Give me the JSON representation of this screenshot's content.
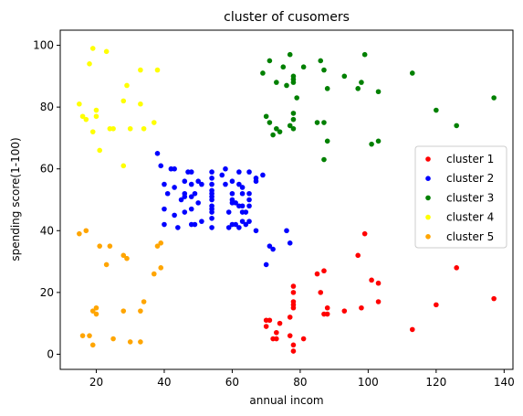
{
  "chart_data": {
    "type": "scatter",
    "title": "cluster of cusomers",
    "xlabel": "annual incom",
    "ylabel": "spending score(1-100)",
    "xlim": [
      9.4,
      142.6
    ],
    "ylim": [
      -4.9,
      104.9
    ],
    "xticks": [
      20,
      40,
      60,
      80,
      100,
      120,
      140
    ],
    "yticks": [
      0,
      20,
      40,
      60,
      80,
      100
    ],
    "grid": false,
    "legend_position": "center-right",
    "series": [
      {
        "name": "cluster 1",
        "color": "#ff0000",
        "points": [
          [
            70,
            9
          ],
          [
            70,
            11
          ],
          [
            71,
            11
          ],
          [
            72,
            5
          ],
          [
            73,
            7
          ],
          [
            73,
            5
          ],
          [
            74,
            10
          ],
          [
            77,
            12
          ],
          [
            77,
            6
          ],
          [
            78,
            15
          ],
          [
            78,
            1
          ],
          [
            78,
            3
          ],
          [
            78,
            16
          ],
          [
            78,
            17
          ],
          [
            78,
            20
          ],
          [
            78,
            22
          ],
          [
            81,
            5
          ],
          [
            85,
            26
          ],
          [
            86,
            20
          ],
          [
            87,
            27
          ],
          [
            87,
            13
          ],
          [
            88,
            13
          ],
          [
            88,
            15
          ],
          [
            93,
            14
          ],
          [
            97,
            32
          ],
          [
            98,
            15
          ],
          [
            99,
            39
          ],
          [
            101,
            24
          ],
          [
            103,
            17
          ],
          [
            103,
            23
          ],
          [
            113,
            8
          ],
          [
            120,
            16
          ],
          [
            126,
            28
          ],
          [
            137,
            18
          ]
        ]
      },
      {
        "name": "cluster 2",
        "color": "#0000ff",
        "points": [
          [
            38,
            65
          ],
          [
            39,
            61
          ],
          [
            40,
            42
          ],
          [
            40,
            47
          ],
          [
            40,
            55
          ],
          [
            41,
            52
          ],
          [
            42,
            60
          ],
          [
            43,
            60
          ],
          [
            43,
            54
          ],
          [
            43,
            45
          ],
          [
            44,
            41
          ],
          [
            45,
            50
          ],
          [
            46,
            46
          ],
          [
            46,
            51
          ],
          [
            46,
            56
          ],
          [
            46,
            52
          ],
          [
            47,
            59
          ],
          [
            48,
            59
          ],
          [
            48,
            47
          ],
          [
            48,
            55
          ],
          [
            48,
            51
          ],
          [
            48,
            42
          ],
          [
            49,
            52
          ],
          [
            49,
            42
          ],
          [
            50,
            49
          ],
          [
            50,
            56
          ],
          [
            51,
            43
          ],
          [
            51,
            55
          ],
          [
            54,
            41
          ],
          [
            54,
            44
          ],
          [
            54,
            46
          ],
          [
            54,
            47
          ],
          [
            54,
            48
          ],
          [
            54,
            50
          ],
          [
            54,
            51
          ],
          [
            54,
            52
          ],
          [
            54,
            53
          ],
          [
            54,
            55
          ],
          [
            54,
            57
          ],
          [
            54,
            59
          ],
          [
            57,
            58
          ],
          [
            58,
            55
          ],
          [
            58,
            60
          ],
          [
            59,
            41
          ],
          [
            59,
            46
          ],
          [
            60,
            42
          ],
          [
            60,
            49
          ],
          [
            60,
            50
          ],
          [
            60,
            52
          ],
          [
            60,
            56
          ],
          [
            61,
            42
          ],
          [
            61,
            49
          ],
          [
            62,
            41
          ],
          [
            62,
            48
          ],
          [
            62,
            59
          ],
          [
            62,
            55
          ],
          [
            63,
            54
          ],
          [
            63,
            46
          ],
          [
            63,
            43
          ],
          [
            63,
            52
          ],
          [
            63,
            48
          ],
          [
            64,
            42
          ],
          [
            64,
            46
          ],
          [
            65,
            48
          ],
          [
            65,
            50
          ],
          [
            65,
            52
          ],
          [
            65,
            43
          ],
          [
            65,
            59
          ],
          [
            67,
            40
          ],
          [
            67,
            56
          ],
          [
            67,
            57
          ],
          [
            69,
            58
          ],
          [
            70,
            29
          ],
          [
            71,
            35
          ],
          [
            72,
            34
          ],
          [
            76,
            40
          ],
          [
            77,
            36
          ]
        ]
      },
      {
        "name": "cluster 3",
        "color": "#008000",
        "points": [
          [
            69,
            91
          ],
          [
            70,
            77
          ],
          [
            71,
            95
          ],
          [
            71,
            75
          ],
          [
            72,
            71
          ],
          [
            73,
            88
          ],
          [
            73,
            73
          ],
          [
            74,
            72
          ],
          [
            75,
            93
          ],
          [
            76,
            87
          ],
          [
            77,
            97
          ],
          [
            77,
            74
          ],
          [
            78,
            90
          ],
          [
            78,
            88
          ],
          [
            78,
            76
          ],
          [
            78,
            89
          ],
          [
            78,
            78
          ],
          [
            78,
            73
          ],
          [
            79,
            83
          ],
          [
            81,
            93
          ],
          [
            85,
            75
          ],
          [
            86,
            95
          ],
          [
            87,
            75
          ],
          [
            87,
            92
          ],
          [
            87,
            63
          ],
          [
            88,
            86
          ],
          [
            88,
            69
          ],
          [
            93,
            90
          ],
          [
            97,
            86
          ],
          [
            98,
            88
          ],
          [
            99,
            97
          ],
          [
            101,
            68
          ],
          [
            103,
            85
          ],
          [
            103,
            69
          ],
          [
            113,
            91
          ],
          [
            120,
            79
          ],
          [
            126,
            74
          ],
          [
            137,
            83
          ]
        ]
      },
      {
        "name": "cluster 4",
        "color": "#ffff00",
        "points": [
          [
            15,
            81
          ],
          [
            16,
            77
          ],
          [
            17,
            76
          ],
          [
            18,
            94
          ],
          [
            19,
            72
          ],
          [
            19,
            99
          ],
          [
            20,
            77
          ],
          [
            20,
            79
          ],
          [
            21,
            66
          ],
          [
            23,
            98
          ],
          [
            24,
            73
          ],
          [
            25,
            73
          ],
          [
            28,
            82
          ],
          [
            28,
            61
          ],
          [
            29,
            87
          ],
          [
            30,
            73
          ],
          [
            33,
            92
          ],
          [
            33,
            81
          ],
          [
            34,
            73
          ],
          [
            37,
            75
          ],
          [
            38,
            92
          ]
        ]
      },
      {
        "name": "cluster 5",
        "color": "#ffa500",
        "points": [
          [
            15,
            39
          ],
          [
            16,
            6
          ],
          [
            17,
            40
          ],
          [
            18,
            6
          ],
          [
            19,
            3
          ],
          [
            19,
            14
          ],
          [
            20,
            15
          ],
          [
            20,
            13
          ],
          [
            21,
            35
          ],
          [
            23,
            29
          ],
          [
            24,
            35
          ],
          [
            25,
            5
          ],
          [
            28,
            14
          ],
          [
            28,
            32
          ],
          [
            29,
            31
          ],
          [
            30,
            4
          ],
          [
            33,
            4
          ],
          [
            33,
            14
          ],
          [
            34,
            17
          ],
          [
            37,
            26
          ],
          [
            38,
            35
          ],
          [
            39,
            36
          ],
          [
            39,
            28
          ]
        ]
      }
    ]
  }
}
